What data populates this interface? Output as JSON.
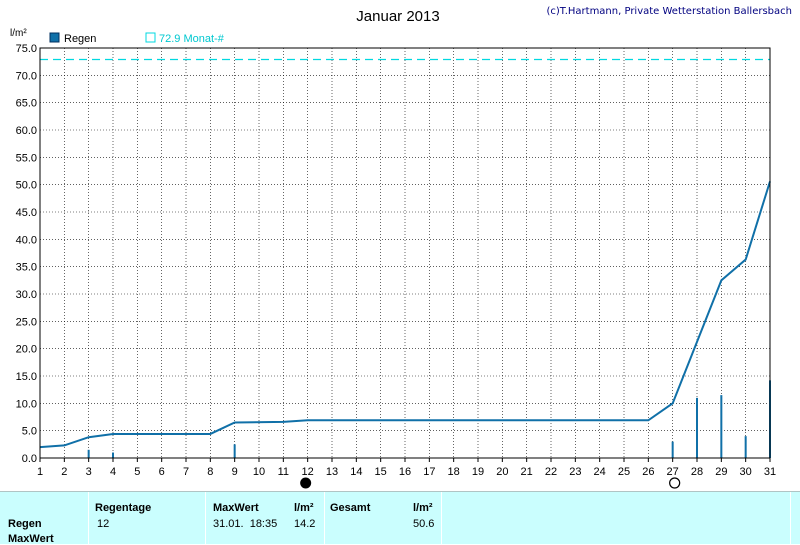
{
  "chart_data": {
    "type": "bar",
    "title": "Januar 2013",
    "copyright": "(c)T.Hartmann, Private Wetterstation Ballersbach",
    "ylabel": "l/m²",
    "ylim": [
      0,
      75
    ],
    "yticks": [
      "0.0",
      "5.0",
      "10.0",
      "15.0",
      "20.0",
      "25.0",
      "30.0",
      "35.0",
      "40.0",
      "45.0",
      "50.0",
      "55.0",
      "60.0",
      "65.0",
      "70.0",
      "75.0"
    ],
    "xlim": [
      1,
      31
    ],
    "xticks": [
      "1",
      "2",
      "3",
      "4",
      "5",
      "6",
      "7",
      "8",
      "9",
      "10",
      "11",
      "12",
      "13",
      "14",
      "15",
      "16",
      "17",
      "18",
      "19",
      "20",
      "21",
      "22",
      "23",
      "24",
      "25",
      "26",
      "27",
      "28",
      "29",
      "30",
      "31"
    ],
    "grid": true,
    "legend": [
      {
        "name": "Regen",
        "color": "#1070a8",
        "style": "filled"
      },
      {
        "name": "72.9 Monat-#",
        "color": "#00d8e0",
        "style": "dashed"
      }
    ],
    "reference_line": {
      "value": 72.9,
      "color": "#00d8e0"
    },
    "daily_rain": {
      "x": [
        3,
        4,
        9,
        27,
        28,
        29,
        30,
        31
      ],
      "values": [
        1.5,
        1.0,
        2.5,
        3.0,
        11.0,
        11.5,
        4.0,
        14.2
      ]
    },
    "cumulative": {
      "x": [
        1,
        2,
        3,
        4,
        5,
        8,
        9,
        11,
        12,
        26,
        27,
        29,
        30,
        31
      ],
      "values": [
        2.0,
        2.3,
        3.8,
        4.4,
        4.4,
        4.4,
        6.5,
        6.6,
        6.9,
        6.9,
        10.0,
        32.5,
        36.3,
        50.6
      ]
    },
    "moon_markers": [
      {
        "day": 12,
        "phase": "new-moon"
      },
      {
        "day": 27,
        "phase": "full-moon"
      }
    ],
    "color": "#1070a8"
  },
  "summary": {
    "headers": {
      "regentage": "Regentage",
      "maxwert": "MaxWert",
      "unit1": "l/m²",
      "gesamt": "Gesamt",
      "unit2": "l/m²"
    },
    "rows": {
      "regen": "Regen",
      "maxwert": "MaxWert"
    },
    "values": {
      "regentage": "12",
      "max_date": "31.01.  18:35",
      "max_value": "14.2",
      "gesamt": "50.6"
    }
  }
}
